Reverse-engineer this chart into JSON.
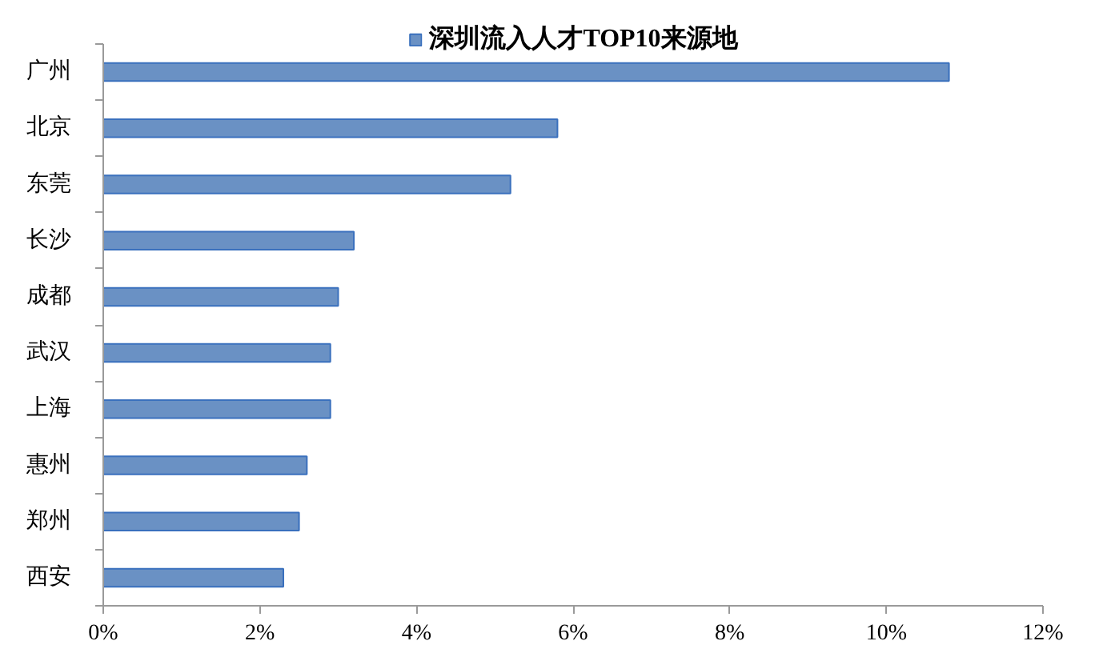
{
  "chart_data": {
    "type": "bar",
    "orientation": "horizontal",
    "categories": [
      "广州",
      "北京",
      "东莞",
      "长沙",
      "成都",
      "武汉",
      "上海",
      "惠州",
      "郑州",
      "西安"
    ],
    "series": [
      {
        "name": "深圳流入人才TOP10来源地",
        "color": "#6a91c4",
        "values": [
          10.8,
          5.8,
          5.2,
          3.2,
          3.0,
          2.9,
          2.9,
          2.6,
          2.5,
          2.3
        ]
      }
    ],
    "xlim": [
      0,
      12
    ],
    "xticks": [
      {
        "value": 0,
        "label": "0%"
      },
      {
        "value": 2,
        "label": "2%"
      },
      {
        "value": 4,
        "label": "4%"
      },
      {
        "value": 6,
        "label": "6%"
      },
      {
        "value": 8,
        "label": "8%"
      },
      {
        "value": 10,
        "label": "10%"
      },
      {
        "value": 12,
        "label": "12%"
      }
    ],
    "grid": false,
    "legend": "top"
  }
}
